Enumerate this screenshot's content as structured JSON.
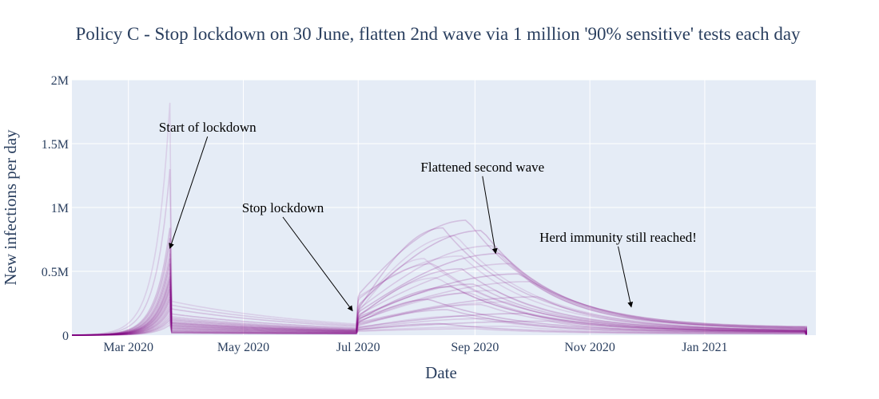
{
  "chart_data": {
    "type": "line",
    "title": "Policy C - Stop lockdown on 30 June, flatten 2nd wave via 1 million '90% sensitive' tests each day",
    "xlabel": "Date",
    "ylabel": "New infections per day",
    "x_range": [
      "2020-01-31",
      "2021-03-01"
    ],
    "ylim": [
      0,
      2000000
    ],
    "x_ticks": [
      {
        "date": "2020-03-01",
        "label": "Mar 2020"
      },
      {
        "date": "2020-05-01",
        "label": "May 2020"
      },
      {
        "date": "2020-07-01",
        "label": "Jul 2020"
      },
      {
        "date": "2020-09-01",
        "label": "Sep 2020"
      },
      {
        "date": "2020-11-01",
        "label": "Nov 2020"
      },
      {
        "date": "2021-01-01",
        "label": "Jan 2021"
      }
    ],
    "y_ticks": [
      {
        "value": 0,
        "label": "0"
      },
      {
        "value": 500000,
        "label": "0.5M"
      },
      {
        "value": 1000000,
        "label": "1M"
      },
      {
        "value": 1500000,
        "label": "1.5M"
      },
      {
        "value": 2000000,
        "label": "2M"
      }
    ],
    "series_color": "#800080",
    "plot_bg": "#e5ecf6",
    "grid": true,
    "legend": "none",
    "key_dates": {
      "lockdown_start": "2020-03-23",
      "lockdown_end": "2020-06-30",
      "end": "2021-02-24"
    },
    "series_note": "Many semi-transparent simulation runs; each run listed as [pre-lockdown peak, lockdown plateau, post-lockdown jump, second-wave peak, second-wave peak date, tail value]",
    "runs": [
      [
        1820000,
        260000,
        290000,
        620000,
        "2020-08-25",
        30000
      ],
      [
        1300000,
        230000,
        270000,
        560000,
        "2020-08-10",
        20000
      ],
      [
        840000,
        200000,
        300000,
        900000,
        "2020-08-28",
        50000
      ],
      [
        760000,
        160000,
        220000,
        820000,
        "2020-09-05",
        40000
      ],
      [
        700000,
        140000,
        200000,
        780000,
        "2020-08-22",
        30000
      ],
      [
        640000,
        130000,
        190000,
        700000,
        "2020-09-10",
        45000
      ],
      [
        600000,
        120000,
        180000,
        840000,
        "2020-08-15",
        25000
      ],
      [
        560000,
        110000,
        170000,
        640000,
        "2020-09-15",
        60000
      ],
      [
        520000,
        100000,
        160000,
        600000,
        "2020-08-05",
        20000
      ],
      [
        490000,
        95000,
        150000,
        560000,
        "2020-09-20",
        55000
      ],
      [
        460000,
        90000,
        140000,
        520000,
        "2020-08-25",
        30000
      ],
      [
        440000,
        85000,
        135000,
        480000,
        "2020-09-25",
        50000
      ],
      [
        420000,
        80000,
        130000,
        450000,
        "2020-08-12",
        20000
      ],
      [
        400000,
        75000,
        125000,
        420000,
        "2020-10-01",
        60000
      ],
      [
        380000,
        70000,
        120000,
        400000,
        "2020-09-01",
        35000
      ],
      [
        360000,
        65000,
        110000,
        380000,
        "2020-08-20",
        25000
      ],
      [
        340000,
        60000,
        105000,
        350000,
        "2020-09-12",
        40000
      ],
      [
        320000,
        55000,
        100000,
        330000,
        "2020-08-30",
        30000
      ],
      [
        300000,
        50000,
        95000,
        300000,
        "2020-10-05",
        45000
      ],
      [
        280000,
        45000,
        90000,
        280000,
        "2020-08-08",
        20000
      ],
      [
        260000,
        40000,
        85000,
        260000,
        "2020-09-18",
        35000
      ],
      [
        240000,
        35000,
        80000,
        240000,
        "2020-09-05",
        30000
      ],
      [
        220000,
        30000,
        70000,
        200000,
        "2020-08-18",
        20000
      ],
      [
        200000,
        25000,
        60000,
        170000,
        "2020-09-28",
        30000
      ],
      [
        180000,
        20000,
        55000,
        150000,
        "2020-08-26",
        20000
      ],
      [
        160000,
        18000,
        50000,
        130000,
        "2020-09-08",
        15000
      ],
      [
        140000,
        15000,
        45000,
        110000,
        "2020-10-10",
        25000
      ],
      [
        120000,
        12000,
        40000,
        90000,
        "2020-08-14",
        12000
      ],
      [
        100000,
        10000,
        35000,
        70000,
        "2020-09-22",
        15000
      ],
      [
        80000,
        8000,
        30000,
        50000,
        "2020-09-02",
        10000
      ]
    ],
    "annotations": [
      {
        "text": "Start of lockdown",
        "text_date": "2020-04-12",
        "text_value": 1580000,
        "arrow_date": "2020-03-23",
        "arrow_value": 680000
      },
      {
        "text": "Stop lockdown",
        "text_date": "2020-05-22",
        "text_value": 950000,
        "arrow_date": "2020-06-28",
        "arrow_value": 190000
      },
      {
        "text": "Flattened second wave",
        "text_date": "2020-09-05",
        "text_value": 1270000,
        "arrow_date": "2020-09-12",
        "arrow_value": 640000
      },
      {
        "text": "Herd immunity still reached!",
        "text_date": "2020-11-16",
        "text_value": 720000,
        "arrow_date": "2020-11-23",
        "arrow_value": 220000
      }
    ]
  }
}
